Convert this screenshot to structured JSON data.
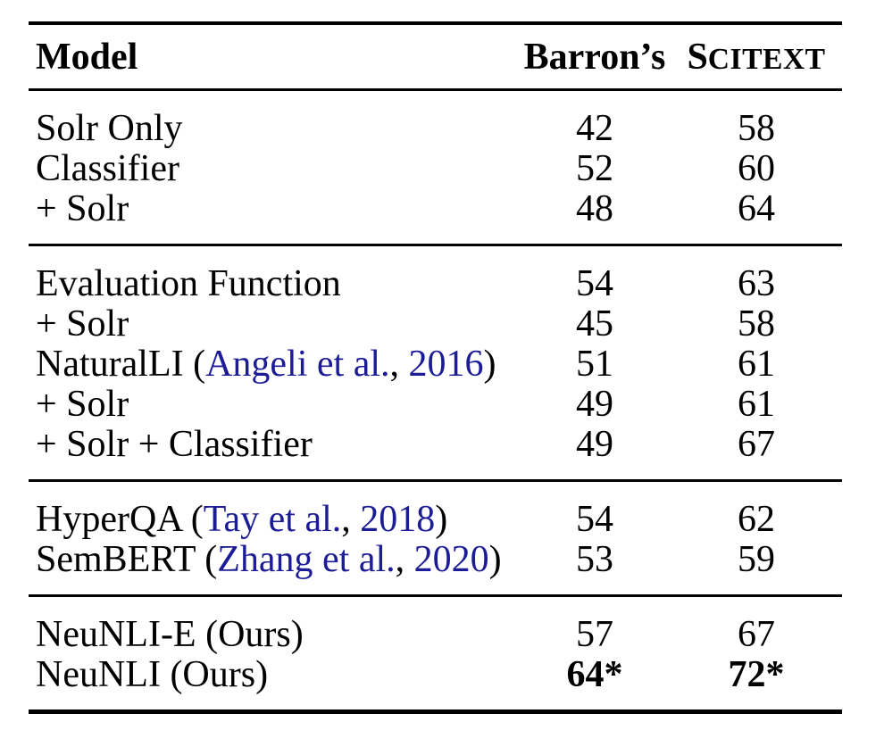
{
  "table": {
    "header": {
      "model_label": "Model",
      "barrons_label": "Barron’s",
      "scitext_first": "S",
      "scitext_rest": "CITEXT"
    },
    "colors": {
      "text": "#000000",
      "link_blue": "#1c1c96",
      "rule": "#000000",
      "background": "#ffffff"
    },
    "columns": [
      "Model",
      "Barron’s",
      "SCITEXT"
    ],
    "groups": [
      {
        "rows": [
          {
            "model": [
              {
                "t": "Solr Only"
              }
            ],
            "barrons": "42",
            "scitext": "58",
            "bold": false
          },
          {
            "model": [
              {
                "t": "Classifier"
              }
            ],
            "barrons": "52",
            "scitext": "60",
            "bold": false
          },
          {
            "model": [
              {
                "t": "+ Solr"
              }
            ],
            "barrons": "48",
            "scitext": "64",
            "bold": false
          }
        ]
      },
      {
        "rows": [
          {
            "model": [
              {
                "t": "Evaluation Function"
              }
            ],
            "barrons": "54",
            "scitext": "63",
            "bold": false
          },
          {
            "model": [
              {
                "t": "+ Solr"
              }
            ],
            "barrons": "45",
            "scitext": "58",
            "bold": false
          },
          {
            "model": [
              {
                "t": "NaturalLI ("
              },
              {
                "t": "Angeli et al.",
                "link": true
              },
              {
                "t": ","
              },
              {
                "t": " 2016",
                "link": true
              },
              {
                "t": ")"
              }
            ],
            "barrons": "51",
            "scitext": "61",
            "bold": false
          },
          {
            "model": [
              {
                "t": "+ Solr"
              }
            ],
            "barrons": "49",
            "scitext": "61",
            "bold": false
          },
          {
            "model": [
              {
                "t": "+ Solr + Classifier"
              }
            ],
            "barrons": "49",
            "scitext": "67",
            "bold": false
          }
        ]
      },
      {
        "rows": [
          {
            "model": [
              {
                "t": "HyperQA ("
              },
              {
                "t": "Tay et al.",
                "link": true
              },
              {
                "t": ","
              },
              {
                "t": " 2018",
                "link": true
              },
              {
                "t": ")"
              }
            ],
            "barrons": "54",
            "scitext": "62",
            "bold": false
          },
          {
            "model": [
              {
                "t": "SemBERT ("
              },
              {
                "t": "Zhang et al.",
                "link": true
              },
              {
                "t": ","
              },
              {
                "t": " 2020",
                "link": true
              },
              {
                "t": ")"
              }
            ],
            "barrons": "53",
            "scitext": "59",
            "bold": false
          }
        ]
      },
      {
        "rows": [
          {
            "model": [
              {
                "t": "NeuNLI-E (Ours)"
              }
            ],
            "barrons": "57",
            "scitext": "67",
            "bold": false
          },
          {
            "model": [
              {
                "t": "NeuNLI (Ours)"
              }
            ],
            "barrons": "64*",
            "scitext": "72*",
            "bold": true
          }
        ]
      }
    ]
  }
}
